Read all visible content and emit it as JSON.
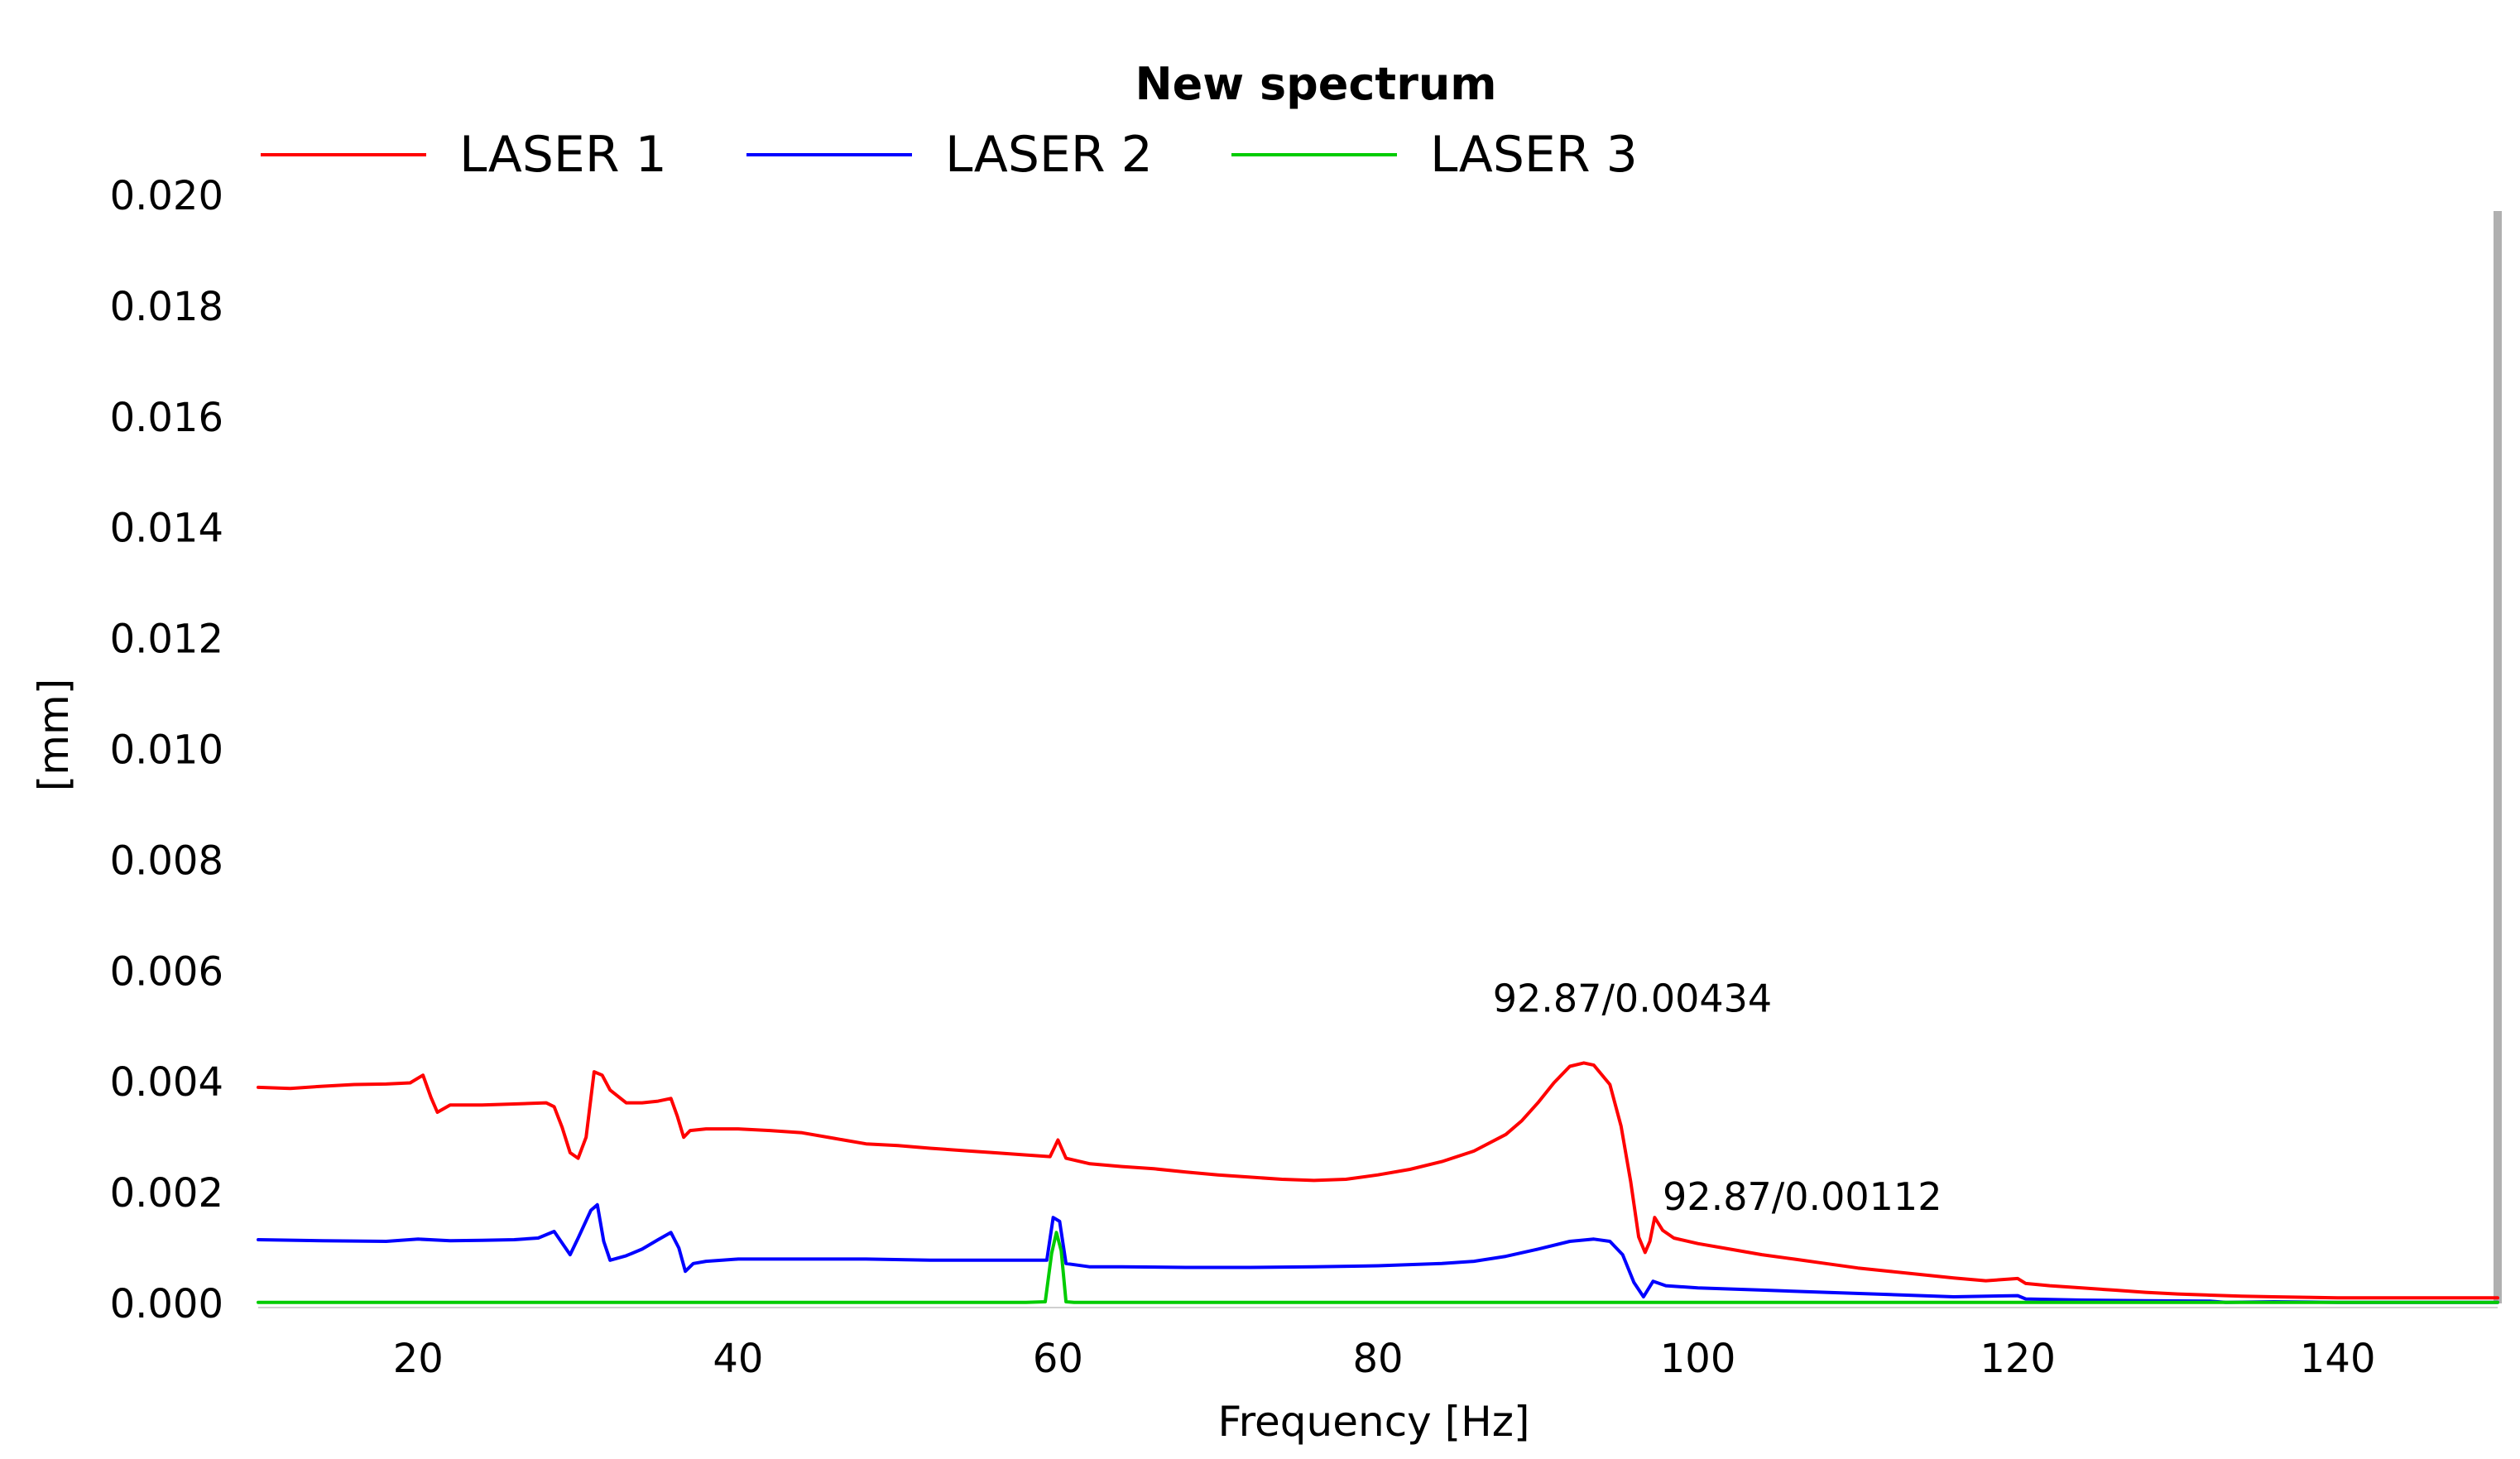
{
  "chart_data": {
    "type": "line",
    "title": "New spectrum",
    "xlabel": "Frequency [Hz]",
    "ylabel": "[mm]",
    "xlim": [
      10,
      150
    ],
    "ylim": [
      0,
      0.02
    ],
    "x_ticks": [
      20,
      40,
      60,
      80,
      100,
      120,
      140
    ],
    "x_tick_labels": [
      "20",
      "40",
      "60",
      "80",
      "100",
      "120",
      "140"
    ],
    "y_ticks": [
      0,
      0.002,
      0.004,
      0.006,
      0.008,
      0.01,
      0.012,
      0.014,
      0.016,
      0.018,
      0.02
    ],
    "y_tick_labels": [
      "0.000",
      "0.002",
      "0.004",
      "0.006",
      "0.008",
      "0.010",
      "0.012",
      "0.014",
      "0.016",
      "0.018",
      "0.020"
    ],
    "grid": false,
    "legend_position": "top",
    "series": [
      {
        "name": "LASER 1",
        "color": "#ff0000",
        "points": [
          [
            10,
            0.0039
          ],
          [
            12,
            0.00388
          ],
          [
            14,
            0.00392
          ],
          [
            16,
            0.00395
          ],
          [
            18,
            0.00396
          ],
          [
            19.5,
            0.00398
          ],
          [
            20.3,
            0.00412
          ],
          [
            20.8,
            0.00372
          ],
          [
            21.2,
            0.00345
          ],
          [
            22,
            0.00358
          ],
          [
            24,
            0.00358
          ],
          [
            26,
            0.0036
          ],
          [
            28,
            0.00362
          ],
          [
            28.5,
            0.00355
          ],
          [
            29,
            0.00318
          ],
          [
            29.5,
            0.00272
          ],
          [
            30,
            0.00262
          ],
          [
            30.5,
            0.003
          ],
          [
            31,
            0.00418
          ],
          [
            31.5,
            0.00412
          ],
          [
            32,
            0.00385
          ],
          [
            33,
            0.00362
          ],
          [
            34,
            0.00362
          ],
          [
            35,
            0.00365
          ],
          [
            35.8,
            0.0037
          ],
          [
            36.2,
            0.00338
          ],
          [
            36.6,
            0.003
          ],
          [
            37,
            0.00312
          ],
          [
            38,
            0.00315
          ],
          [
            40,
            0.00315
          ],
          [
            42,
            0.00312
          ],
          [
            44,
            0.00308
          ],
          [
            46,
            0.00298
          ],
          [
            48,
            0.00288
          ],
          [
            50,
            0.00285
          ],
          [
            52,
            0.0028
          ],
          [
            54,
            0.00276
          ],
          [
            56,
            0.00272
          ],
          [
            58,
            0.00268
          ],
          [
            59.5,
            0.00265
          ],
          [
            60,
            0.00295
          ],
          [
            60.5,
            0.00262
          ],
          [
            62,
            0.00252
          ],
          [
            64,
            0.00247
          ],
          [
            66,
            0.00243
          ],
          [
            68,
            0.00237
          ],
          [
            70,
            0.00232
          ],
          [
            72,
            0.00228
          ],
          [
            74,
            0.00224
          ],
          [
            76,
            0.00222
          ],
          [
            78,
            0.00224
          ],
          [
            80,
            0.00232
          ],
          [
            82,
            0.00242
          ],
          [
            84,
            0.00256
          ],
          [
            86,
            0.00275
          ],
          [
            88,
            0.00305
          ],
          [
            89,
            0.0033
          ],
          [
            90,
            0.00362
          ],
          [
            91,
            0.00398
          ],
          [
            92,
            0.00428
          ],
          [
            92.87,
            0.00434
          ],
          [
            93.5,
            0.0043
          ],
          [
            94.5,
            0.00395
          ],
          [
            95.2,
            0.0032
          ],
          [
            95.8,
            0.0022
          ],
          [
            96.3,
            0.0012
          ],
          [
            96.7,
            0.00092
          ],
          [
            97,
            0.00112
          ],
          [
            97.3,
            0.00155
          ],
          [
            97.8,
            0.00132
          ],
          [
            98.5,
            0.00118
          ],
          [
            100,
            0.00108
          ],
          [
            102,
            0.00098
          ],
          [
            104,
            0.00088
          ],
          [
            106,
            0.0008
          ],
          [
            108,
            0.00072
          ],
          [
            110,
            0.00064
          ],
          [
            112,
            0.00058
          ],
          [
            114,
            0.00052
          ],
          [
            116,
            0.00046
          ],
          [
            118,
            0.00041
          ],
          [
            120,
            0.00045
          ],
          [
            120.5,
            0.00036
          ],
          [
            122,
            0.00032
          ],
          [
            124,
            0.00028
          ],
          [
            126,
            0.00024
          ],
          [
            128,
            0.0002
          ],
          [
            130,
            0.00017
          ],
          [
            132,
            0.00015
          ],
          [
            134,
            0.00013
          ],
          [
            136,
            0.00012
          ],
          [
            138,
            0.00011
          ],
          [
            140,
            0.0001
          ],
          [
            145,
            0.0001
          ],
          [
            150,
            0.0001
          ]
        ]
      },
      {
        "name": "LASER 2",
        "color": "#0000ff",
        "points": [
          [
            10,
            0.00115
          ],
          [
            14,
            0.00113
          ],
          [
            18,
            0.00112
          ],
          [
            20,
            0.00116
          ],
          [
            22,
            0.00113
          ],
          [
            24,
            0.00114
          ],
          [
            26,
            0.00115
          ],
          [
            27.5,
            0.00118
          ],
          [
            28.5,
            0.0013
          ],
          [
            29.5,
            0.00088
          ],
          [
            30,
            0.00118
          ],
          [
            30.8,
            0.00168
          ],
          [
            31.2,
            0.00178
          ],
          [
            31.6,
            0.00112
          ],
          [
            32,
            0.00078
          ],
          [
            33,
            0.00086
          ],
          [
            34,
            0.00098
          ],
          [
            35,
            0.00115
          ],
          [
            35.8,
            0.00128
          ],
          [
            36.3,
            0.001
          ],
          [
            36.7,
            0.00058
          ],
          [
            37.2,
            0.00072
          ],
          [
            38,
            0.00076
          ],
          [
            40,
            0.0008
          ],
          [
            44,
            0.0008
          ],
          [
            48,
            0.0008
          ],
          [
            52,
            0.00078
          ],
          [
            56,
            0.00078
          ],
          [
            59.3,
            0.00078
          ],
          [
            59.7,
            0.00155
          ],
          [
            60.1,
            0.00148
          ],
          [
            60.5,
            0.00072
          ],
          [
            62,
            0.00066
          ],
          [
            64,
            0.00066
          ],
          [
            68,
            0.00065
          ],
          [
            72,
            0.00065
          ],
          [
            76,
            0.00066
          ],
          [
            80,
            0.00068
          ],
          [
            84,
            0.00072
          ],
          [
            86,
            0.00076
          ],
          [
            88,
            0.00085
          ],
          [
            90,
            0.00098
          ],
          [
            92,
            0.00112
          ],
          [
            93.5,
            0.00116
          ],
          [
            94.5,
            0.00112
          ],
          [
            95.3,
            0.00088
          ],
          [
            96,
            0.00038
          ],
          [
            96.6,
            0.00012
          ],
          [
            97.2,
            0.0004
          ],
          [
            98,
            0.00032
          ],
          [
            100,
            0.00028
          ],
          [
            104,
            0.00024
          ],
          [
            108,
            0.0002
          ],
          [
            112,
            0.00016
          ],
          [
            116,
            0.00012
          ],
          [
            120,
            0.00014
          ],
          [
            120.5,
            8e-05
          ],
          [
            124,
            6e-05
          ],
          [
            128,
            5e-05
          ],
          [
            132,
            4e-05
          ],
          [
            133,
            2e-05
          ],
          [
            136,
            3e-05
          ],
          [
            140,
            2e-05
          ],
          [
            150,
            2e-05
          ]
        ]
      },
      {
        "name": "LASER 3",
        "color": "#00cc00",
        "points": [
          [
            10,
            2e-05
          ],
          [
            58,
            2e-05
          ],
          [
            59.2,
            3e-05
          ],
          [
            59.6,
            0.0009
          ],
          [
            59.9,
            0.00128
          ],
          [
            60.2,
            0.00095
          ],
          [
            60.5,
            3e-05
          ],
          [
            61,
            2e-05
          ],
          [
            150,
            2e-05
          ]
        ]
      }
    ],
    "annotations": [
      {
        "text": "92.87/0.00434",
        "x": 92.87,
        "y": 0.00434
      },
      {
        "text": "92.87/0.00112",
        "x": 92.87,
        "y": 0.00112
      }
    ]
  }
}
